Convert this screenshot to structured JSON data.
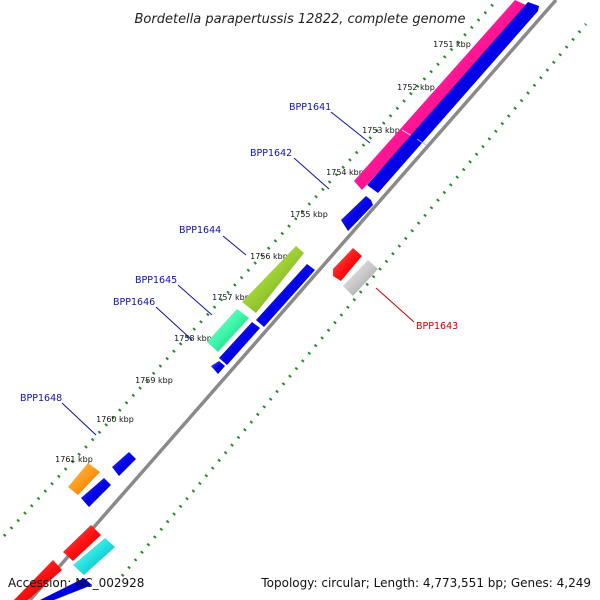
{
  "title": "Bordetella parapertussis 12822, complete genome",
  "footer": {
    "accession": "Accession: NC_002928",
    "summary": "Topology: circular; Length: 4,773,551 bp; Genes: 4,249"
  },
  "colors": {
    "backbone": "#8a8a8a",
    "forward_strand": "#0000dd",
    "tick_dots": "#2a8a2a",
    "label_blue": "#1111aa",
    "label_red": "#cc0000"
  },
  "kbp_ticks": [
    {
      "label": "1751 kbp"
    },
    {
      "label": "1752 kbp"
    },
    {
      "label": "1753 kbp"
    },
    {
      "label": "1754 kbp"
    },
    {
      "label": "1755 kbp"
    },
    {
      "label": "1756 kbp"
    },
    {
      "label": "1757 kbp"
    },
    {
      "label": "1758 kbp"
    },
    {
      "label": "1759 kbp"
    },
    {
      "label": "1760 kbp"
    },
    {
      "label": "1761 kbp"
    }
  ],
  "gene_labels": [
    {
      "name": "BPP1641",
      "color": "#1111aa"
    },
    {
      "name": "BPP1642",
      "color": "#1111aa"
    },
    {
      "name": "BPP1644",
      "color": "#1111aa"
    },
    {
      "name": "BPP1645",
      "color": "#1111aa"
    },
    {
      "name": "BPP1646",
      "color": "#1111aa"
    },
    {
      "name": "BPP1648",
      "color": "#1111aa"
    },
    {
      "name": "BPP1643",
      "color": "#cc0000"
    }
  ]
}
